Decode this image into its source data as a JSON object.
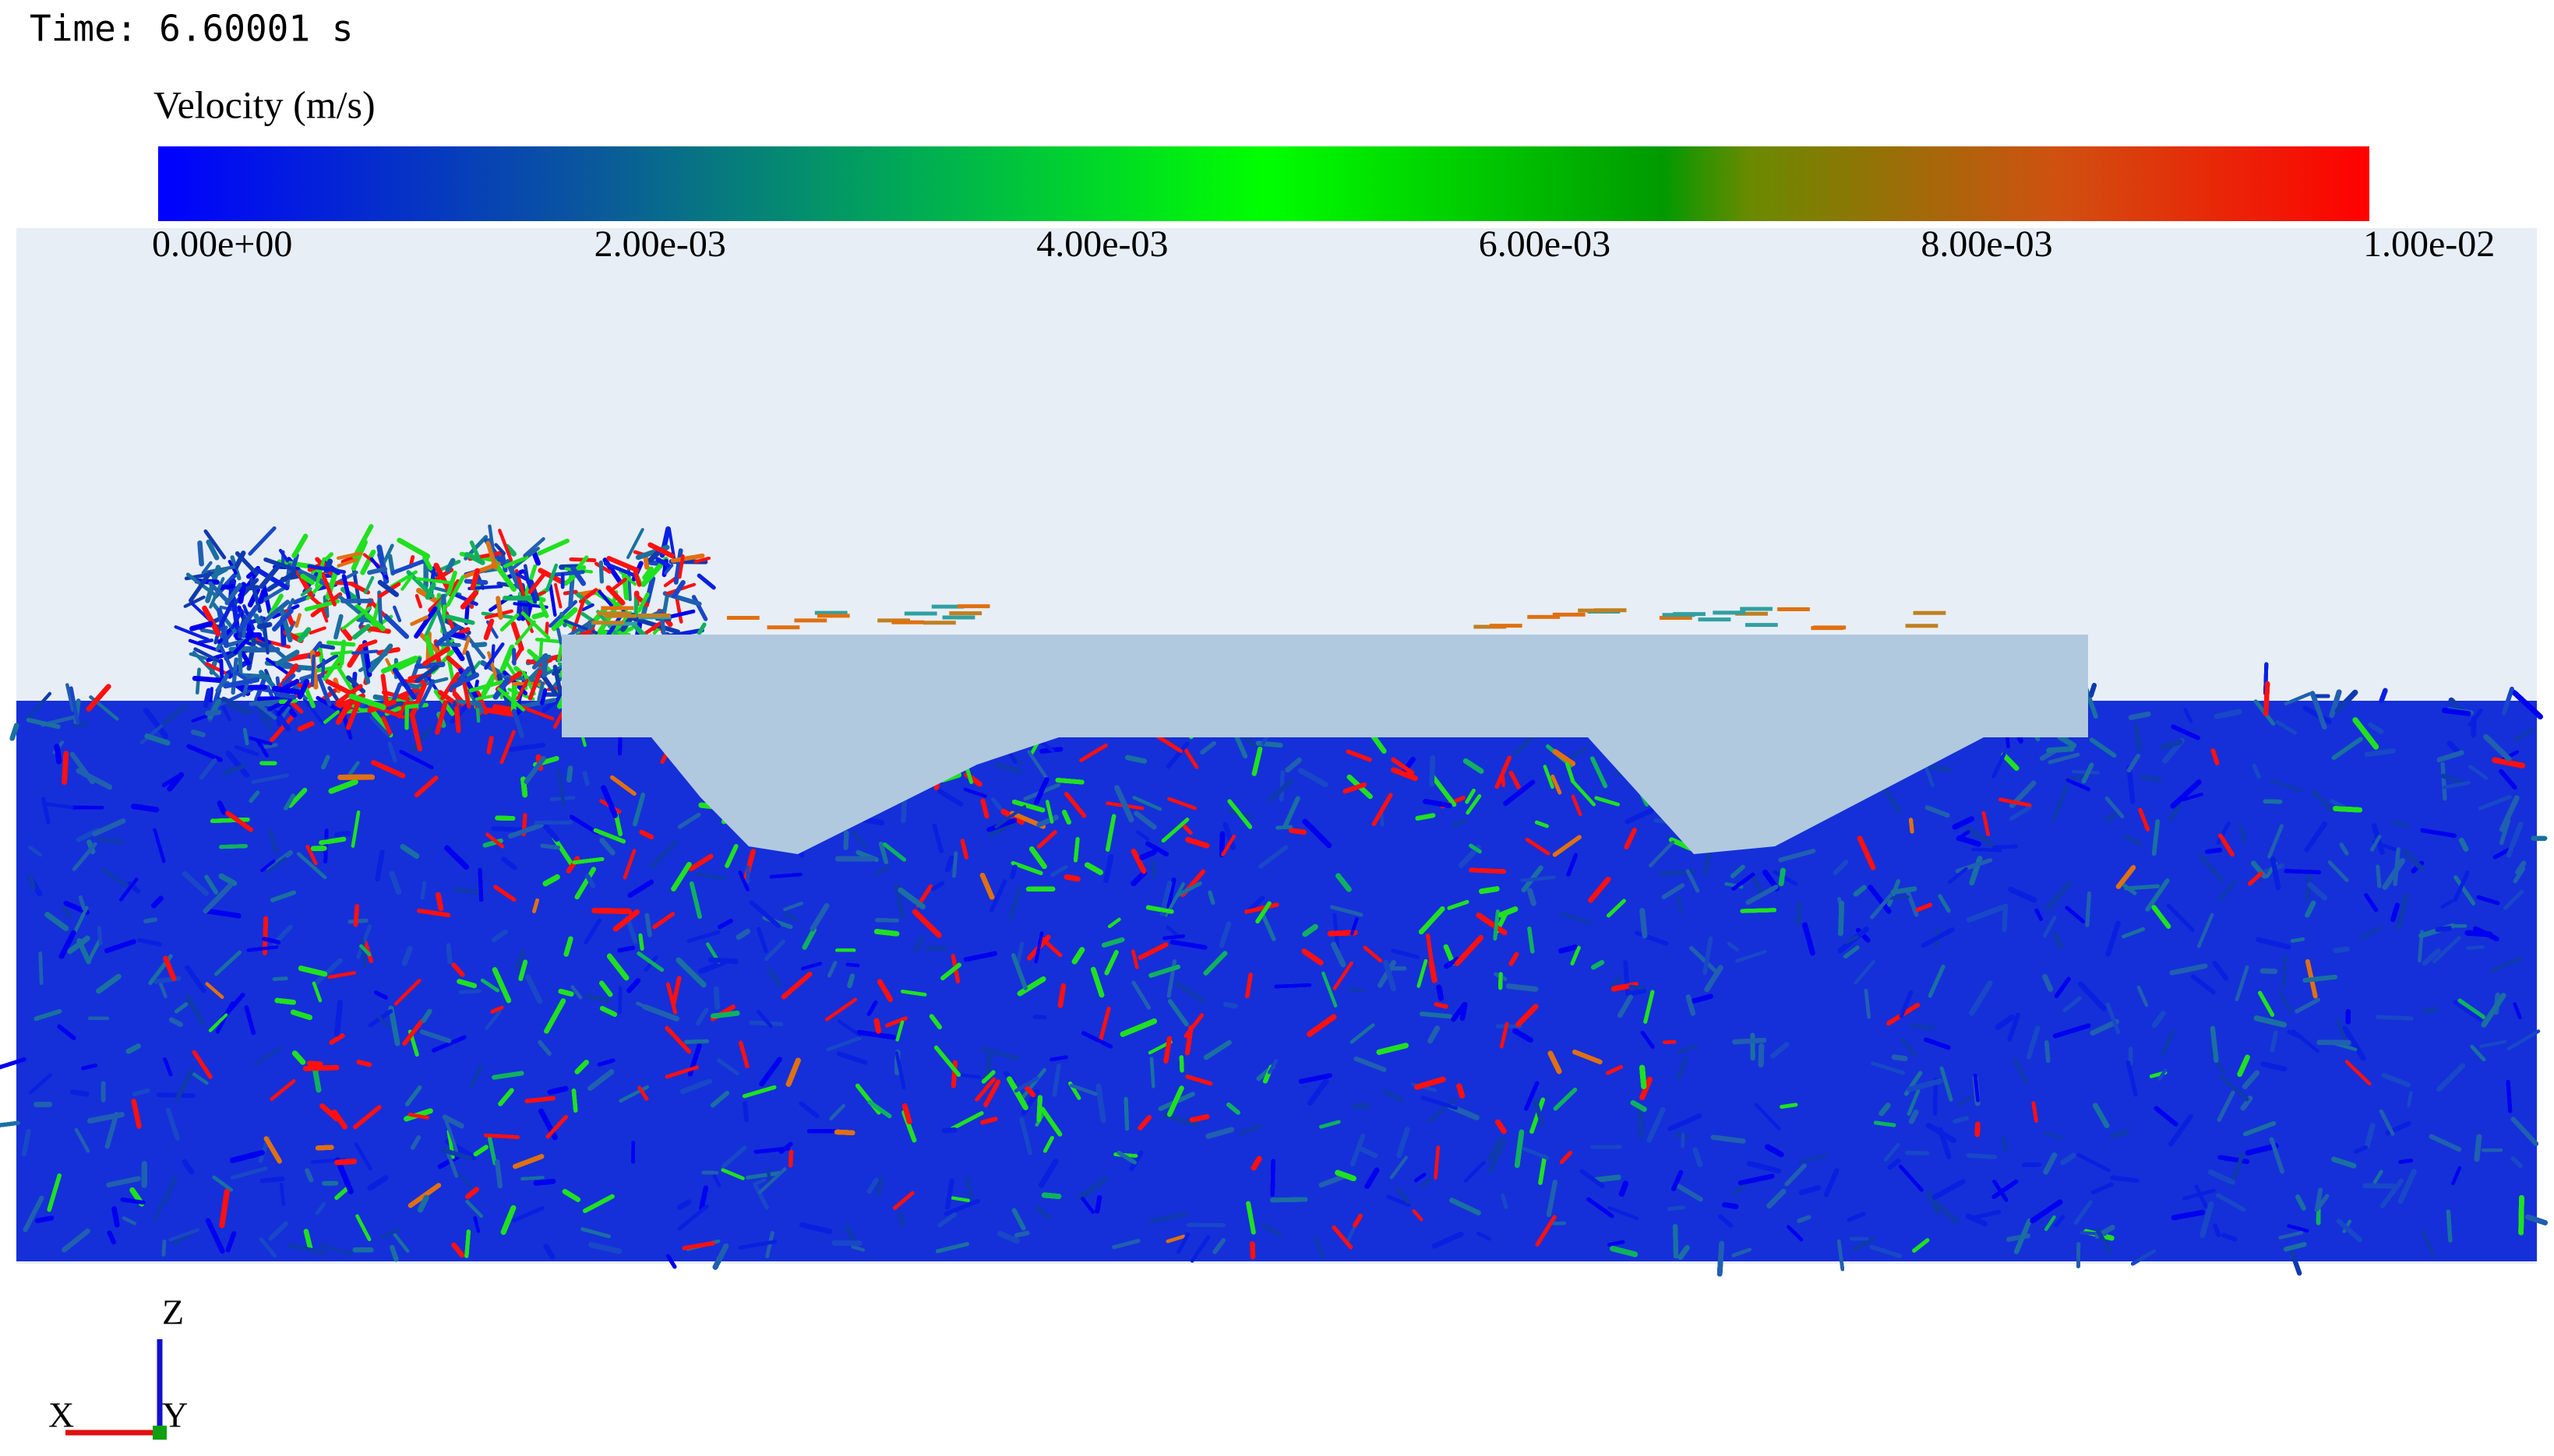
{
  "header": {
    "time": "Time: 6.60001 s"
  },
  "colorbar": {
    "title": "Velocity (m/s)",
    "labels": [
      "0.00e+00",
      "2.00e-03",
      "4.00e-03",
      "6.00e-03",
      "8.00e-03",
      "1.00e-02"
    ]
  },
  "axes_triad": {
    "z": "Z",
    "x": "X",
    "y": "Y"
  }
}
